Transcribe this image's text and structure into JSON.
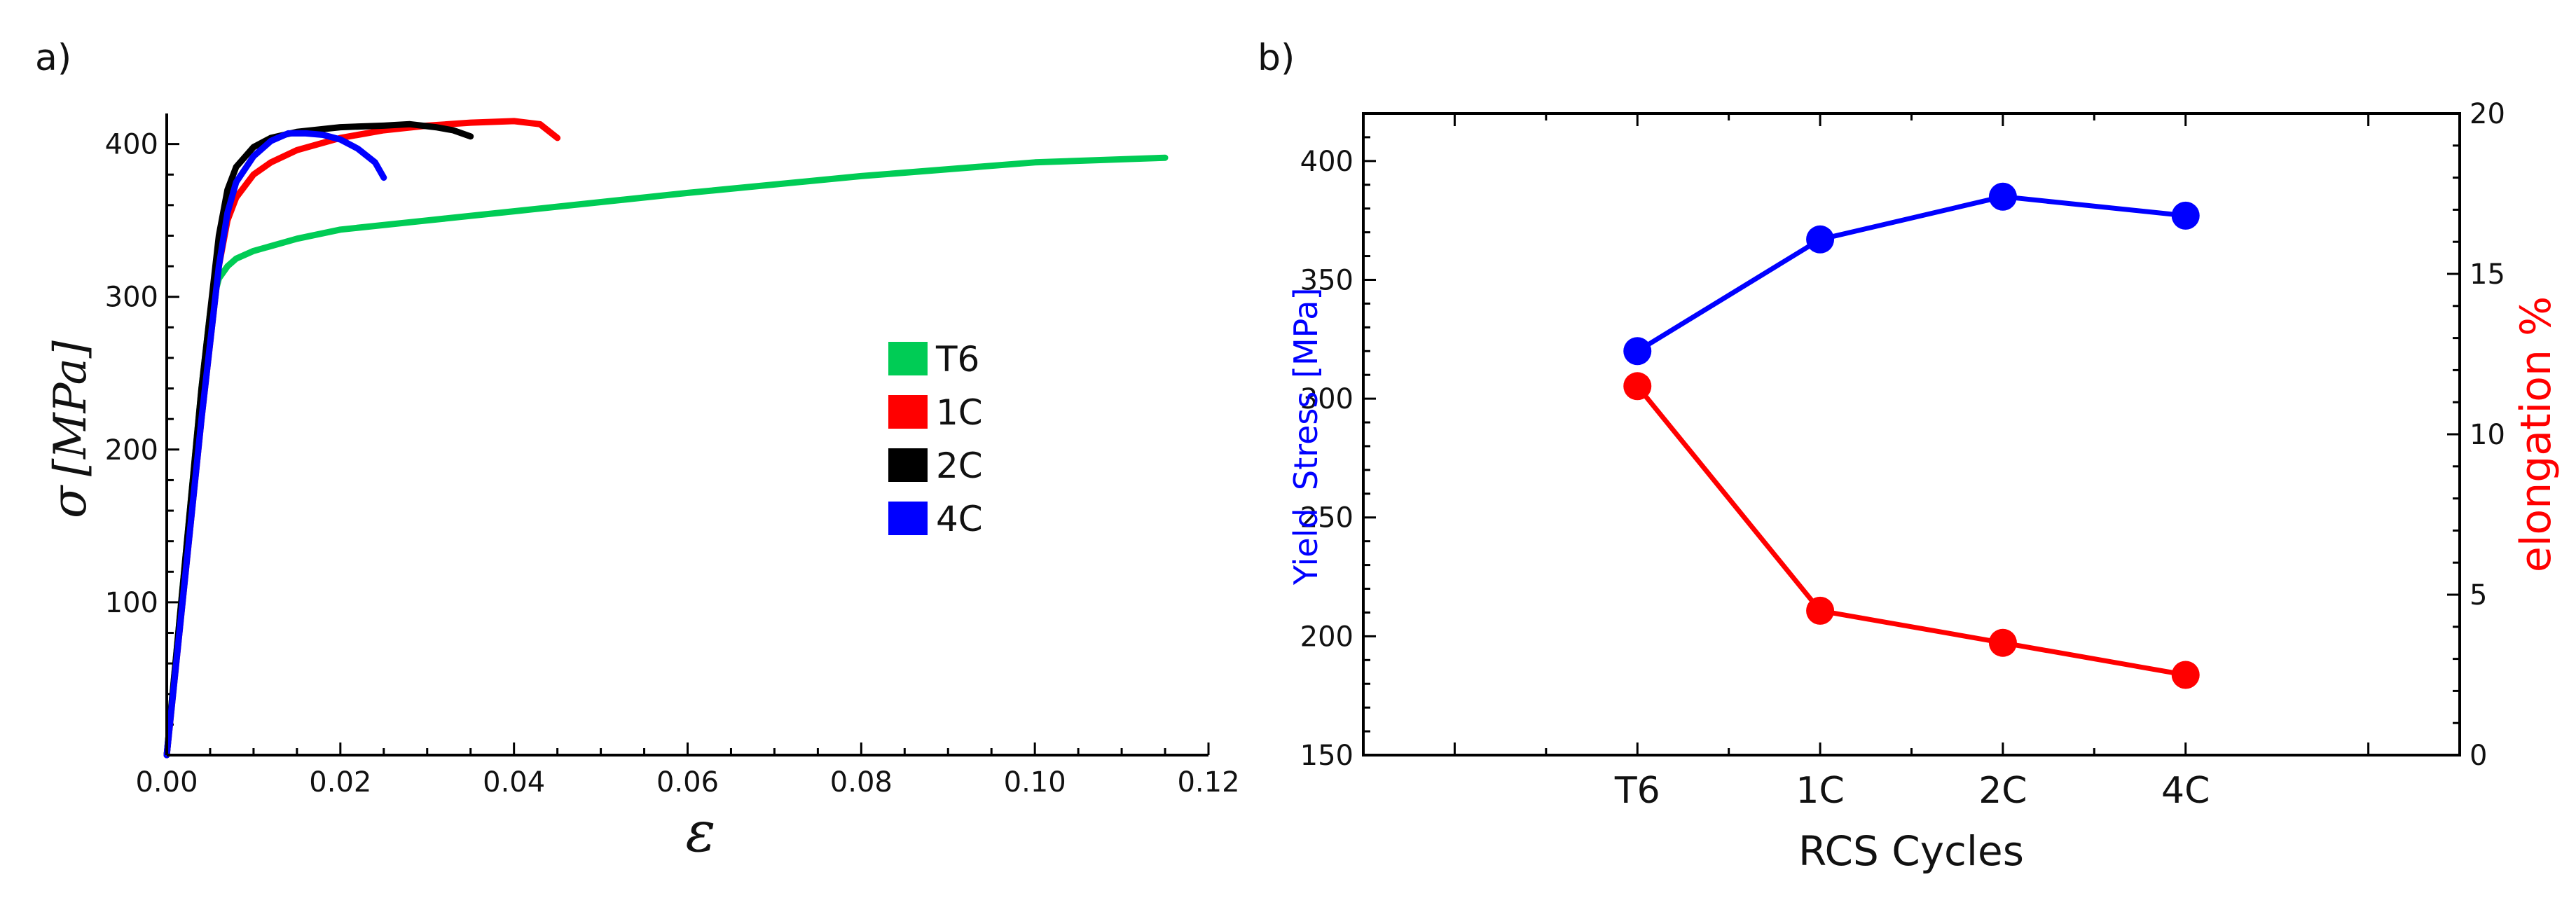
{
  "panel_labels": {
    "a": "a)",
    "b": "b)"
  },
  "chart_data": [
    {
      "type": "line",
      "panel": "a)",
      "title": "",
      "xlabel": "ε",
      "ylabel_symbol": "σ",
      "ylabel_unit": "[MPa]",
      "xlim": [
        0,
        0.12
      ],
      "ylim": [
        0,
        420
      ],
      "xticks": [
        0,
        0.02,
        0.04,
        0.06,
        0.08,
        0.1,
        0.12
      ],
      "xtick_labels": [
        "0.00",
        "0.02",
        "0.04",
        "0.06",
        "0.08",
        "0.10",
        "0.12"
      ],
      "yticks": [
        100,
        200,
        300,
        400
      ],
      "ytick_labels": [
        "100",
        "200",
        "300",
        "400"
      ],
      "legend_position": "center-right",
      "series": [
        {
          "name": "T6",
          "color": "#00cc55",
          "x": [
            0,
            0.002,
            0.004,
            0.005,
            0.006,
            0.007,
            0.008,
            0.01,
            0.015,
            0.02,
            0.03,
            0.04,
            0.06,
            0.08,
            0.1,
            0.115
          ],
          "y": [
            0,
            120,
            240,
            290,
            312,
            320,
            325,
            330,
            338,
            344,
            350,
            356,
            368,
            379,
            388,
            391
          ]
        },
        {
          "name": "1C",
          "color": "#ff0000",
          "x": [
            0,
            0.002,
            0.004,
            0.006,
            0.007,
            0.008,
            0.01,
            0.012,
            0.015,
            0.02,
            0.025,
            0.03,
            0.035,
            0.04,
            0.043,
            0.045
          ],
          "y": [
            0,
            110,
            220,
            320,
            350,
            365,
            380,
            388,
            396,
            404,
            409,
            412,
            414,
            415,
            413,
            404
          ]
        },
        {
          "name": "2C",
          "color": "#000000",
          "x": [
            0,
            0.002,
            0.004,
            0.006,
            0.007,
            0.008,
            0.01,
            0.012,
            0.015,
            0.02,
            0.025,
            0.028,
            0.031,
            0.033,
            0.035
          ],
          "y": [
            0,
            120,
            240,
            340,
            370,
            385,
            398,
            404,
            408,
            411,
            412,
            413,
            411,
            409,
            405
          ]
        },
        {
          "name": "4C",
          "color": "#0000ff",
          "x": [
            0,
            0.002,
            0.004,
            0.006,
            0.007,
            0.008,
            0.01,
            0.012,
            0.014,
            0.016,
            0.018,
            0.02,
            0.022,
            0.024,
            0.025
          ],
          "y": [
            0,
            110,
            220,
            320,
            355,
            375,
            392,
            402,
            407,
            407,
            406,
            403,
            397,
            388,
            378
          ]
        }
      ]
    },
    {
      "type": "line",
      "panel": "b)",
      "title": "",
      "xlabel": "RCS Cycles",
      "ylabel_left_word1": "Yield",
      "ylabel_left_word2": "Stress",
      "ylabel_left_unit": "[MPa]",
      "ylabel_right": "elongation %",
      "categories": [
        "T6",
        "1C",
        "2C",
        "4C"
      ],
      "ylim_left": [
        150,
        420
      ],
      "ylim_right": [
        0,
        20
      ],
      "yticks_left": [
        150,
        200,
        250,
        300,
        350,
        400
      ],
      "yticks_right": [
        0,
        5,
        10,
        15,
        20
      ],
      "series": [
        {
          "name": "Yield Stress",
          "axis": "left",
          "color": "#0000ff",
          "values": [
            320,
            367,
            385,
            377
          ]
        },
        {
          "name": "elongation",
          "axis": "right",
          "color": "#ff0000",
          "values": [
            11.5,
            4.5,
            3.5,
            2.5
          ]
        }
      ]
    }
  ]
}
